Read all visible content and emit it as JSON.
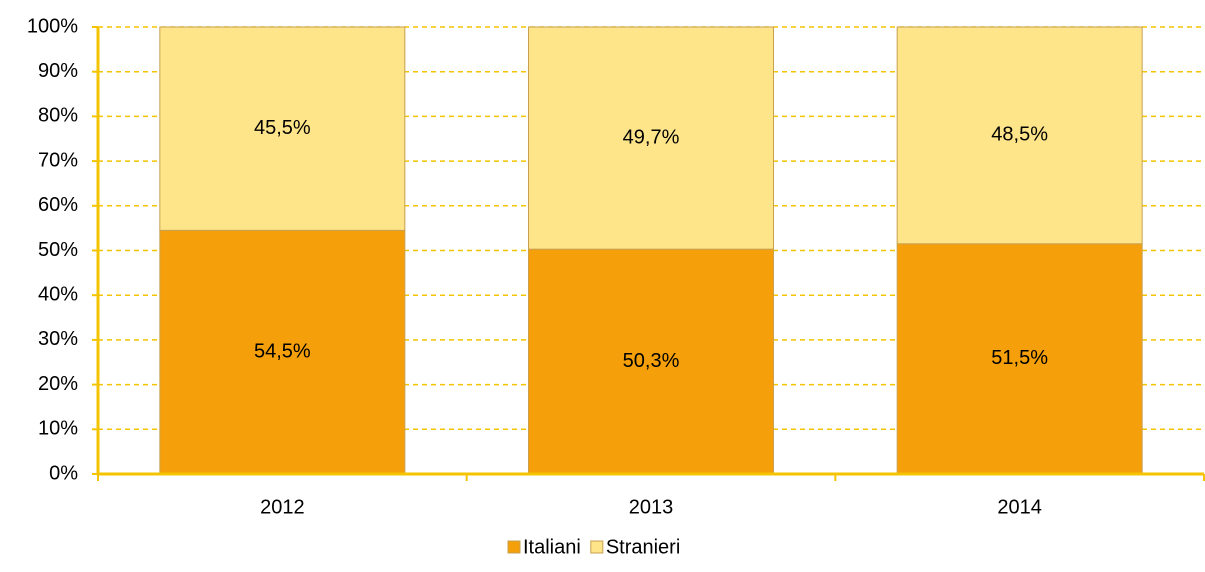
{
  "chart_data": {
    "type": "stacked_bar",
    "categories": [
      "2012",
      "2013",
      "2014"
    ],
    "series": [
      {
        "name": "Italiani",
        "color": "#f5a00a",
        "values": [
          54.5,
          50.3,
          51.5
        ],
        "value_labels": [
          "54,5%",
          "50,3%",
          "51,5%"
        ]
      },
      {
        "name": "Stranieri",
        "color": "#ffe58a",
        "values": [
          45.5,
          49.7,
          48.5
        ],
        "value_labels": [
          "45,5%",
          "49,7%",
          "48,5%"
        ]
      }
    ],
    "ylim": [
      0,
      100
    ],
    "yticks": [
      {
        "value": 0,
        "label": "0%"
      },
      {
        "value": 10,
        "label": "10%"
      },
      {
        "value": 20,
        "label": "20%"
      },
      {
        "value": 30,
        "label": "30%"
      },
      {
        "value": 40,
        "label": "40%"
      },
      {
        "value": 50,
        "label": "50%"
      },
      {
        "value": 60,
        "label": "60%"
      },
      {
        "value": 70,
        "label": "70%"
      },
      {
        "value": 80,
        "label": "80%"
      },
      {
        "value": 90,
        "label": "90%"
      },
      {
        "value": 100,
        "label": "100%"
      }
    ],
    "grid": true
  }
}
